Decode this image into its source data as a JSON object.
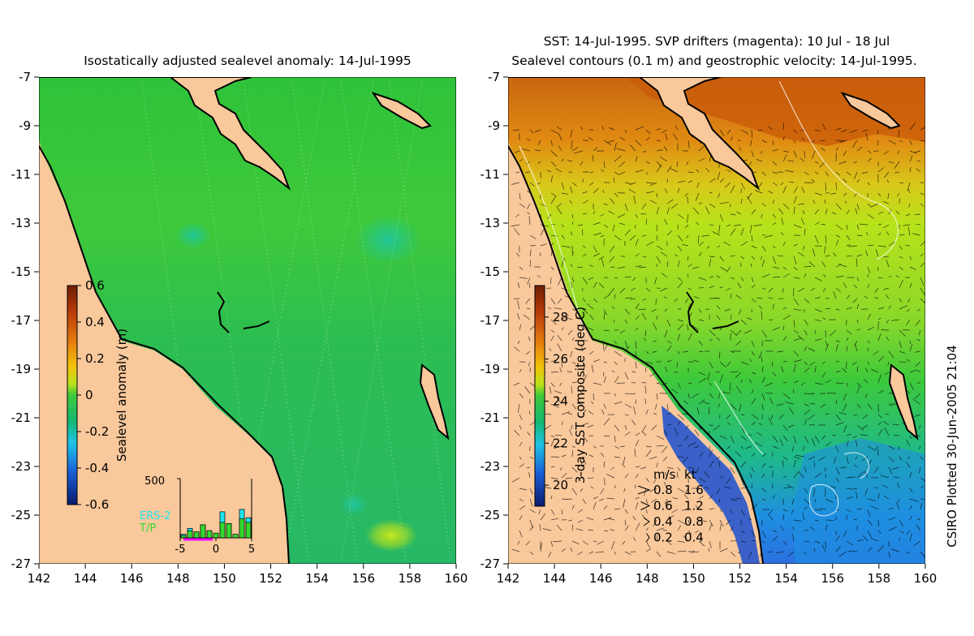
{
  "colors": {
    "land": "#f9c89b",
    "coast": "#000000",
    "contour": "#ffffff",
    "sla_ramp": [
      "#0a1a6e",
      "#1a5fd6",
      "#1ec3e6",
      "#16b873",
      "#3ec93a",
      "#b8e21a",
      "#f2c20a",
      "#e57a0f",
      "#b83a07",
      "#6e1f05"
    ],
    "sst_ramp": [
      "#0a1a6e",
      "#1a5fd6",
      "#1ec3e6",
      "#16b873",
      "#3ec93a",
      "#b8e21a",
      "#f2c20a",
      "#e57a0f",
      "#b83a07",
      "#6e1f05"
    ],
    "hist_ers2": "#1fe3f0",
    "hist_tp": "#32d92f",
    "hist_marker": "#ff00ff"
  },
  "left_panel": {
    "title": "Isostatically adjusted sealevel anomaly: 14-Jul-1995"
  },
  "right_panel": {
    "title_line1": "SST: 14-Jul-1995. SVP drifters (magenta): 10 Jul - 18 Jul",
    "title_line2": "Sealevel contours (0.1 m) and geostrophic velocity: 14-Jul-1995."
  },
  "credit": "CSIRO Plotted 30-Jun-2005 21:04",
  "chart_data": [
    {
      "type": "heatmap",
      "title": "Isostatically adjusted sealevel anomaly: 14-Jul-1995",
      "x_ticks": [
        "142",
        "144",
        "146",
        "148",
        "150",
        "152",
        "154",
        "156",
        "158",
        "160"
      ],
      "y_ticks": [
        "-7",
        "-9",
        "-11",
        "-13",
        "-15",
        "-17",
        "-19",
        "-21",
        "-23",
        "-25",
        "-27"
      ],
      "xlim": [
        142,
        160
      ],
      "ylim": [
        -27,
        -7
      ],
      "colorbar": {
        "label": "Sealevel anomaly (m)",
        "ticks": [
          "0.6",
          "0.4",
          "0.2",
          "0",
          "-0.2",
          "-0.4",
          "-0.6"
        ],
        "range": [
          -0.6,
          0.6
        ]
      },
      "inset_histogram": {
        "legend": [
          "ERS-2",
          "T/P"
        ],
        "x_ticks": [
          "-5",
          "0",
          "5"
        ],
        "y_tick": "500",
        "ylim": [
          0,
          500
        ],
        "categories": [
          -5,
          -4,
          -3,
          -2,
          -1,
          0,
          1,
          2,
          3,
          4,
          5
        ],
        "series": [
          {
            "name": "ERS-2",
            "values": [
              30,
              80,
              50,
              110,
              60,
              0,
              220,
              120,
              0,
              240,
              170
            ]
          },
          {
            "name": "T/P",
            "values": [
              20,
              60,
              130,
              150,
              110,
              40,
              130,
              170,
              30,
              160,
              130
            ]
          }
        ]
      },
      "grid": false
    },
    {
      "type": "heatmap",
      "title": "SST: 14-Jul-1995. SVP drifters (magenta): 10 Jul - 18 Jul / Sealevel contours (0.1 m) and geostrophic velocity: 14-Jul-1995.",
      "x_ticks": [
        "142",
        "144",
        "146",
        "148",
        "150",
        "152",
        "154",
        "156",
        "158",
        "160"
      ],
      "y_ticks": [
        "-7",
        "-9",
        "-11",
        "-13",
        "-15",
        "-17",
        "-19",
        "-21",
        "-23",
        "-25",
        "-27"
      ],
      "xlim": [
        142,
        160
      ],
      "ylim": [
        -27,
        -7
      ],
      "colorbar": {
        "label": "3-day SST composite (deg C)",
        "ticks": [
          "28",
          "26",
          "24",
          "22",
          "20"
        ],
        "range": [
          19,
          29.5
        ]
      },
      "velocity_key": {
        "header_ms": "m/s",
        "header_kt": "kt",
        "rows": [
          {
            "ms": "0.8",
            "kt": "1.6"
          },
          {
            "ms": "0.6",
            "kt": "1.2"
          },
          {
            "ms": "0.4",
            "kt": "0.8"
          },
          {
            "ms": "0.2",
            "kt": "0.4"
          }
        ]
      },
      "grid": false
    }
  ]
}
